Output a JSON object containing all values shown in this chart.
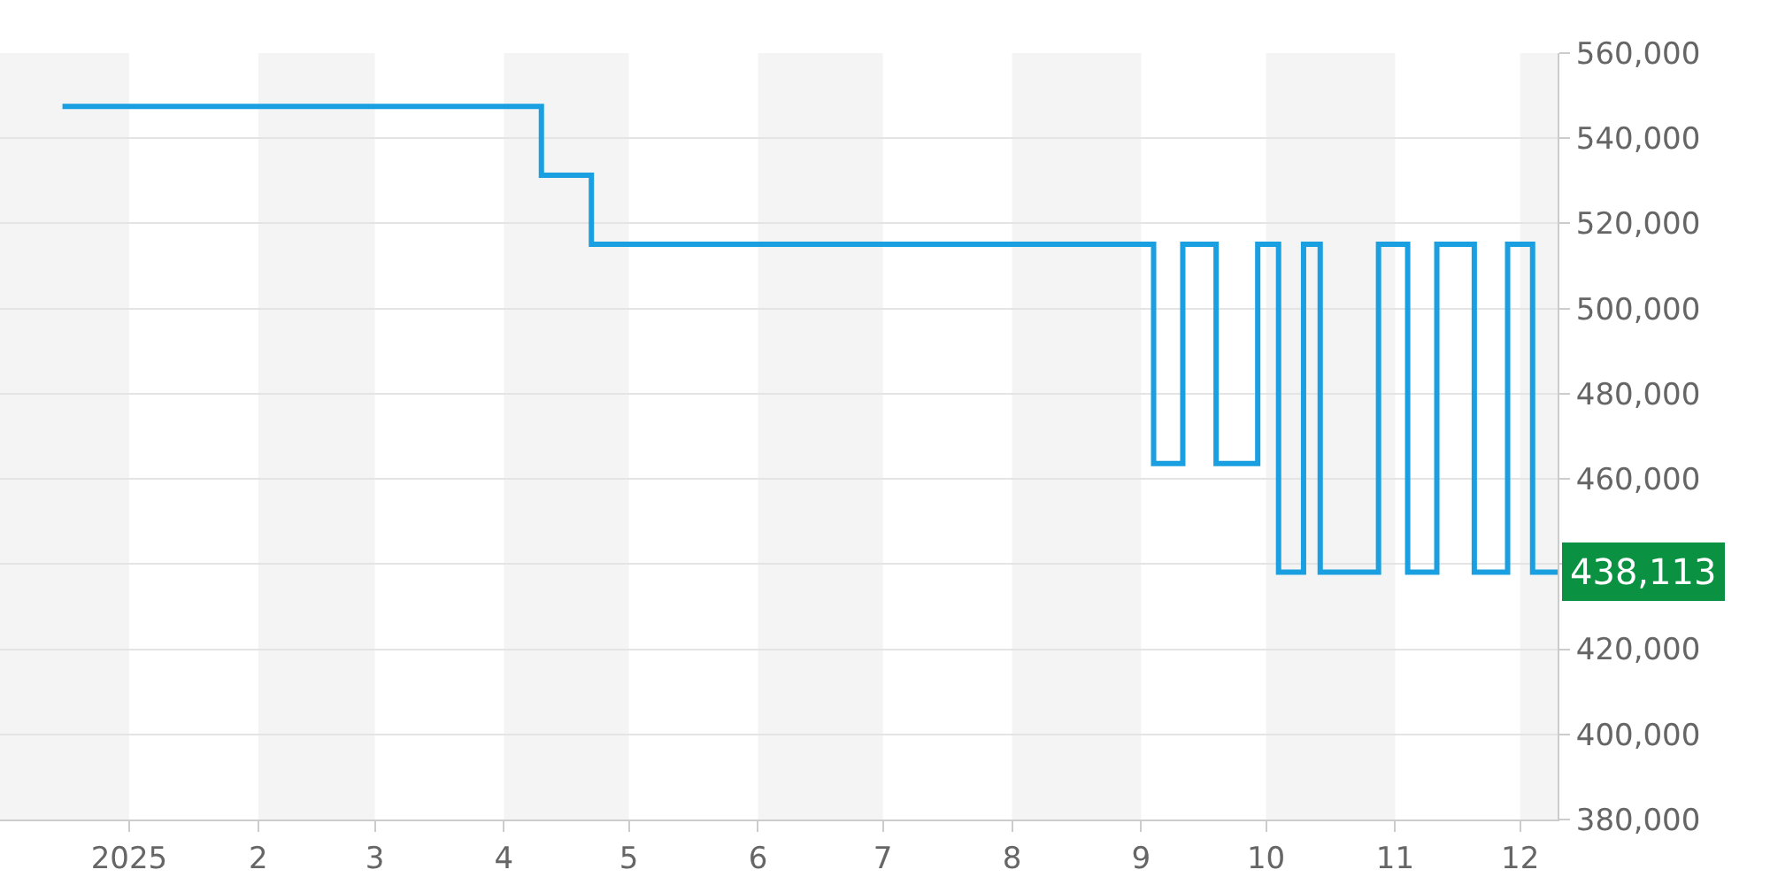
{
  "chart_data": {
    "type": "step",
    "x": [
      "2024-12-16",
      "2025-04-10",
      "2025-04-22",
      "2025-09-04",
      "2025-09-11",
      "2025-09-19",
      "2025-09-29",
      "2025-10-04",
      "2025-10-10",
      "2025-10-14",
      "2025-10-28",
      "2025-11-04",
      "2025-11-11",
      "2025-11-20",
      "2025-11-28",
      "2025-12-04",
      "2025-12-10"
    ],
    "series": [
      {
        "color": "#1a9fe0",
        "values": [
          547500,
          531300,
          515100,
          463600,
          515100,
          463600,
          515100,
          438113,
          515100,
          438113,
          515100,
          438113,
          515100,
          438113,
          515100,
          438113,
          438113
        ]
      }
    ],
    "xlim": [
      "2024-12-01",
      "2025-12-10"
    ],
    "xticks": [
      {
        "value": "2025-01-01",
        "label": "2025"
      },
      {
        "value": "2025-02-01",
        "label": "2"
      },
      {
        "value": "2025-03-01",
        "label": "3"
      },
      {
        "value": "2025-04-01",
        "label": "4"
      },
      {
        "value": "2025-05-01",
        "label": "5"
      },
      {
        "value": "2025-06-01",
        "label": "6"
      },
      {
        "value": "2025-07-01",
        "label": "7"
      },
      {
        "value": "2025-08-01",
        "label": "8"
      },
      {
        "value": "2025-09-01",
        "label": "9"
      },
      {
        "value": "2025-10-01",
        "label": "10"
      },
      {
        "value": "2025-11-01",
        "label": "11"
      },
      {
        "value": "2025-12-01",
        "label": "12"
      }
    ],
    "ylim": [
      380000,
      560000
    ],
    "yticks": [
      {
        "value": 380000,
        "label": "380,000"
      },
      {
        "value": 400000,
        "label": "400,000"
      },
      {
        "value": 420000,
        "label": "420,000"
      },
      {
        "value": 440000,
        "label": null
      },
      {
        "value": 460000,
        "label": "460,000"
      },
      {
        "value": 480000,
        "label": "480,000"
      },
      {
        "value": 500000,
        "label": "500,000"
      },
      {
        "value": 520000,
        "label": "520,000"
      },
      {
        "value": 540000,
        "label": "540,000"
      },
      {
        "value": 560000,
        "label": "560,000"
      }
    ],
    "grid": "y",
    "marker": "none",
    "line_style": "solid",
    "bands": [
      {
        "axis": "x",
        "from": "2024-12-01",
        "to": "2025-01-01",
        "color": "#f4f4f4"
      },
      {
        "axis": "x",
        "from": "2025-02-01",
        "to": "2025-03-01",
        "color": "#f4f4f4"
      },
      {
        "axis": "x",
        "from": "2025-04-01",
        "to": "2025-05-01",
        "color": "#f4f4f4"
      },
      {
        "axis": "x",
        "from": "2025-06-01",
        "to": "2025-07-01",
        "color": "#f4f4f4"
      },
      {
        "axis": "x",
        "from": "2025-08-01",
        "to": "2025-09-01",
        "color": "#f4f4f4"
      },
      {
        "axis": "x",
        "from": "2025-10-01",
        "to": "2025-11-01",
        "color": "#f4f4f4"
      },
      {
        "axis": "x",
        "from": "2025-12-01",
        "to": "2025-12-10",
        "color": "#f4f4f4"
      }
    ],
    "annotations": [
      {
        "text": "438,113",
        "x": "2025-12-10",
        "y": 438113
      }
    ]
  }
}
